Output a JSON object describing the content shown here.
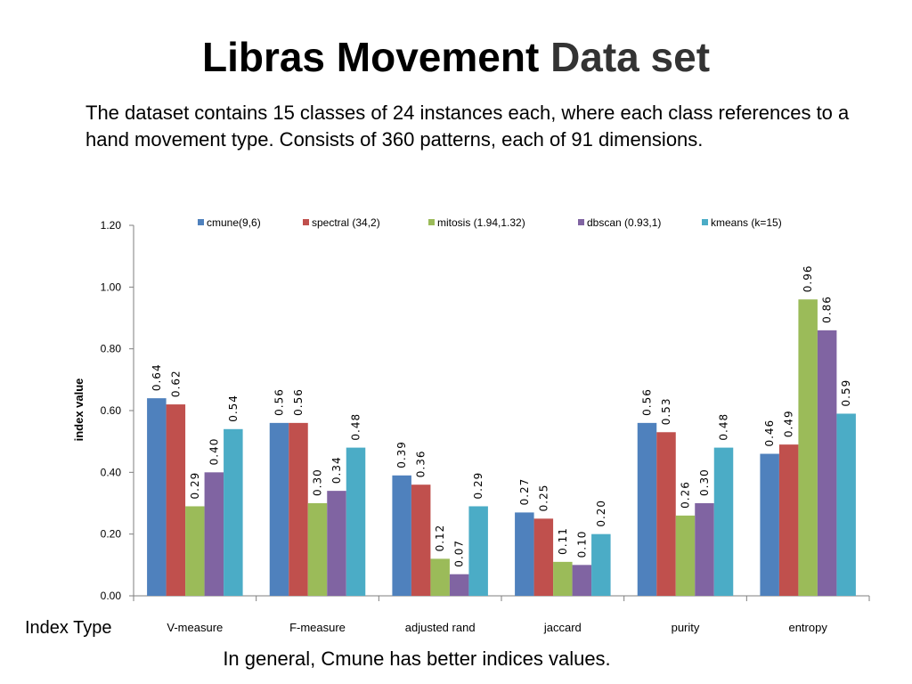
{
  "slide": {
    "title_part1": "Libras Movement",
    "title_part2": "Data set",
    "description": "The dataset contains 15 classes of 24 instances each, where each class references to a hand movement type. Consists of 360 patterns, each of 91 dimensions.",
    "index_type_label": "Index Type",
    "footnote": "In general, Cmune has better indices values."
  },
  "chart_data": {
    "type": "bar",
    "title": "",
    "xlabel": "Index Type",
    "ylabel": "index value",
    "ylim": [
      0,
      1.2
    ],
    "yticks": [
      "0.00",
      "0.20",
      "0.40",
      "0.60",
      "0.80",
      "1.00",
      "1.20"
    ],
    "legend_position": "top",
    "categories": [
      "V-measure",
      "F-measure",
      "adjusted rand",
      "jaccard",
      "purity",
      "entropy"
    ],
    "series": [
      {
        "name": "cmune(9,6)",
        "color": "#4f81bd",
        "values": [
          0.64,
          0.56,
          0.39,
          0.27,
          0.56,
          0.46
        ]
      },
      {
        "name": "spectral (34,2)",
        "color": "#c0504d",
        "values": [
          0.62,
          0.56,
          0.36,
          0.25,
          0.53,
          0.49
        ]
      },
      {
        "name": "mitosis (1.94,1.32)",
        "color": "#9bbb59",
        "values": [
          0.29,
          0.3,
          0.12,
          0.11,
          0.26,
          0.96
        ]
      },
      {
        "name": "dbscan (0.93,1)",
        "color": "#8064a2",
        "values": [
          0.4,
          0.34,
          0.07,
          0.1,
          0.3,
          0.86
        ]
      },
      {
        "name": "kmeans (k=15)",
        "color": "#4bacc6",
        "values": [
          0.54,
          0.48,
          0.29,
          0.2,
          0.48,
          0.59
        ]
      }
    ],
    "data_labels": [
      [
        "0.64",
        "0.56",
        "0.39",
        "0.27",
        "0.56",
        "0.46"
      ],
      [
        "0.62",
        "0.56",
        "0.36",
        "0.25",
        "0.53",
        "0.49"
      ],
      [
        "0.29",
        "0.30",
        "0.12",
        "0.11",
        "0.26",
        "0.96"
      ],
      [
        "0.40",
        "0.34",
        "0.07",
        "0.10",
        "0.30",
        "0.86"
      ],
      [
        "0.54",
        "0.48",
        "0.29",
        "0.20",
        "0.48",
        "0.59"
      ]
    ]
  }
}
